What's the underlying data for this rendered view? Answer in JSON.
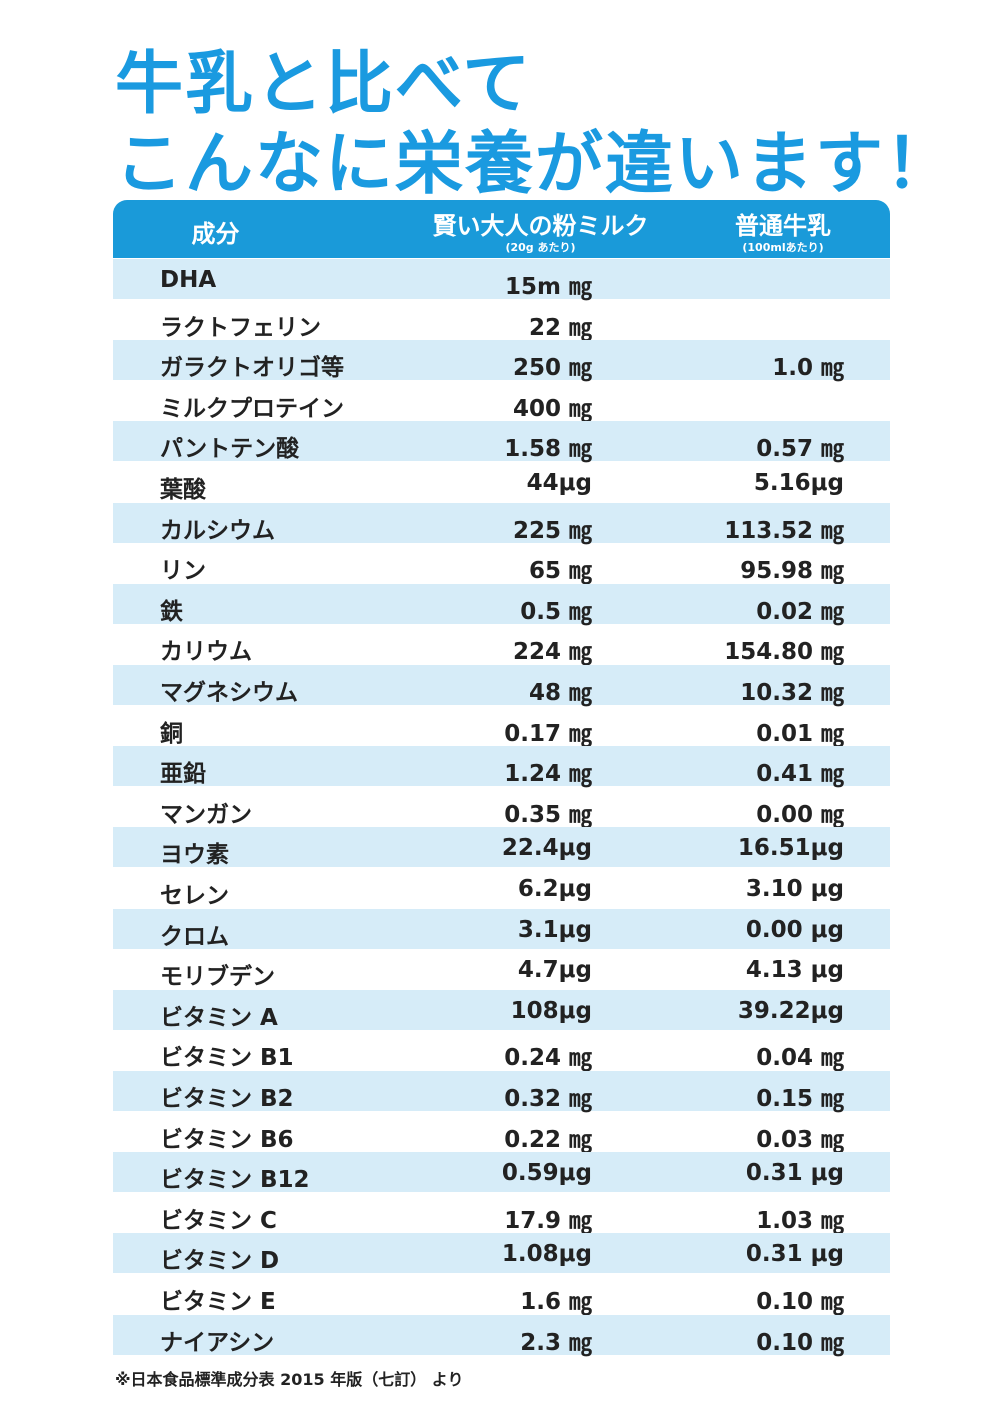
{
  "header": {
    "title_lines": [
      "牛乳と比べて",
      "こんなに栄養が違います！"
    ]
  },
  "table": {
    "columns": [
      {
        "label": "成分"
      },
      {
        "label": "賢い大人の粉ミルク",
        "note": "(20g あたり)"
      },
      {
        "label": "普通牛乳",
        "note": "(100mlあたり)"
      }
    ],
    "rows": [
      [
        "DHA",
        "15m ㎎",
        null
      ],
      [
        "ラクトフェリン",
        "22 ㎎",
        null
      ],
      [
        "ガラクトオリゴ等",
        "250 ㎎",
        "1.0 ㎎"
      ],
      [
        "ミルクプロテイン",
        "400 ㎎",
        null
      ],
      [
        "パントテン酸",
        "1.58 ㎎",
        "0.57 ㎎"
      ],
      [
        "葉酸",
        "44μg",
        "5.16μg"
      ],
      [
        "カルシウム",
        "225 ㎎",
        "113.52 ㎎"
      ],
      [
        "リン",
        "65 ㎎",
        "95.98 ㎎"
      ],
      [
        "鉄",
        "0.5 ㎎",
        "0.02 ㎎"
      ],
      [
        "カリウム",
        "224 ㎎",
        "154.80 ㎎"
      ],
      [
        "マグネシウム",
        "48 ㎎",
        "10.32 ㎎"
      ],
      [
        "銅",
        "0.17 ㎎",
        "0.01 ㎎"
      ],
      [
        "亜鉛",
        "1.24 ㎎",
        "0.41 ㎎"
      ],
      [
        "マンガン",
        "0.35 ㎎",
        "0.00 ㎎"
      ],
      [
        "ヨウ素",
        "22.4μg",
        "16.51μg"
      ],
      [
        "セレン",
        "6.2μg",
        "3.10 μg"
      ],
      [
        "クロム",
        "3.1μg",
        "0.00 μg"
      ],
      [
        "モリブデン",
        "4.7μg",
        "4.13 μg"
      ],
      [
        "ビタミン A",
        "108μg",
        "39.22μg"
      ],
      [
        "ビタミン B1",
        "0.24 ㎎",
        "0.04 ㎎"
      ],
      [
        "ビタミン B2",
        "0.32 ㎎",
        "0.15 ㎎"
      ],
      [
        "ビタミン B6",
        "0.22 ㎎",
        "0.03 ㎎"
      ],
      [
        "ビタミン B12",
        "0.59μg",
        "0.31 μg"
      ],
      [
        "ビタミン C",
        "17.9 ㎎",
        "1.03 ㎎"
      ],
      [
        "ビタミン D",
        "1.08μg",
        "0.31 μg"
      ],
      [
        "ビタミン E",
        "1.6 ㎎",
        "0.10 ㎎"
      ],
      [
        "ナイアシン",
        "2.3 ㎎",
        "0.10 ㎎"
      ]
    ]
  },
  "footnote": "※日本食品標準成分表 2015 年版（七訂） より"
}
